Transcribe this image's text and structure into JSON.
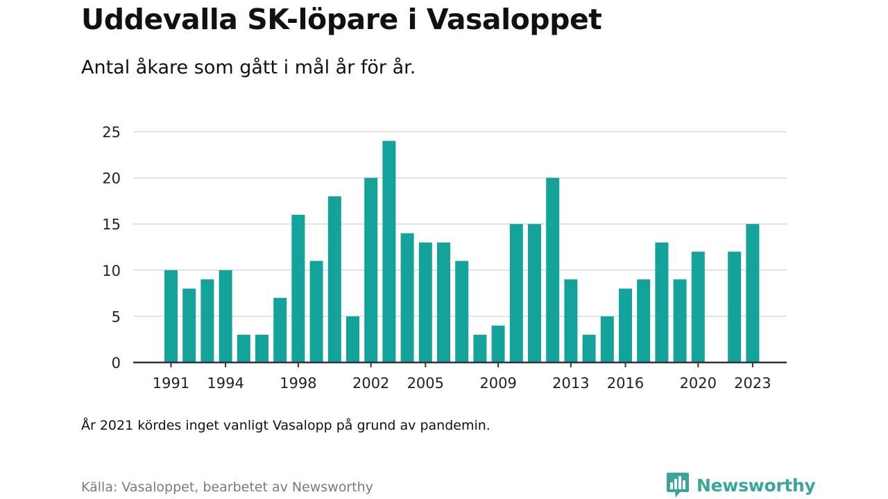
{
  "header": {
    "title": "Uddevalla SK-löpare i Vasaloppet",
    "subtitle": "Antal åkare som gått i mål år för år."
  },
  "footer": {
    "note": "År 2021 kördes inget vanligt Vasalopp på grund av pandemin.",
    "source": "Källa: Vasaloppet, bearbetet av Newsworthy",
    "brand": "Newsworthy",
    "brand_icon": "newsworthy-logo-icon"
  },
  "colors": {
    "bar": "#13a39a",
    "grid": "#d9d9d9",
    "axis": "#333333",
    "brand": "#3aa69a"
  },
  "chart_data": {
    "type": "bar",
    "title": "Uddevalla SK-löpare i Vasaloppet",
    "subtitle": "Antal åkare som gått i mål år för år.",
    "xlabel": "",
    "ylabel": "",
    "categories": [
      1991,
      1992,
      1993,
      1994,
      1995,
      1996,
      1997,
      1998,
      1999,
      2000,
      2001,
      2002,
      2003,
      2004,
      2005,
      2006,
      2007,
      2008,
      2009,
      2010,
      2011,
      2012,
      2013,
      2014,
      2015,
      2016,
      2017,
      2018,
      2019,
      2020,
      2021,
      2022,
      2023
    ],
    "values": [
      10,
      8,
      9,
      10,
      3,
      3,
      7,
      16,
      11,
      18,
      5,
      20,
      24,
      14,
      13,
      13,
      11,
      3,
      4,
      15,
      15,
      20,
      9,
      3,
      5,
      8,
      9,
      13,
      9,
      12,
      null,
      12,
      15
    ],
    "x_tick_labels": [
      "1991",
      "1994",
      "1998",
      "2002",
      "2005",
      "2009",
      "2013",
      "2016",
      "2020",
      "2023"
    ],
    "y_ticks": [
      0,
      5,
      10,
      15,
      20,
      25
    ],
    "ylim": [
      0,
      25
    ],
    "grid": true,
    "legend": "none"
  }
}
